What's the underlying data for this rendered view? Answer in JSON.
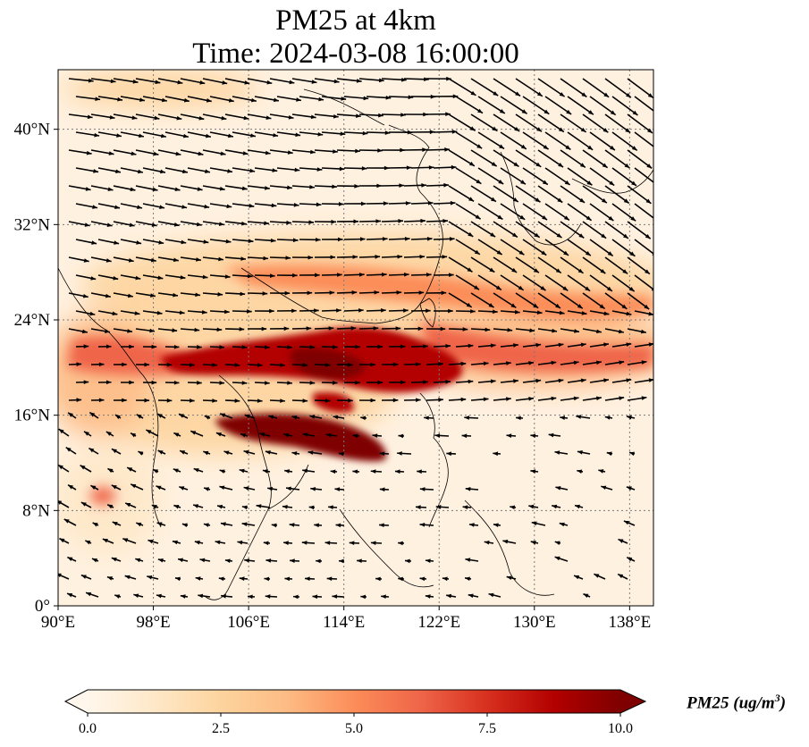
{
  "title": {
    "line1": "PM25 at 4km",
    "line2": "Time: 2024-03-08 16:00:00"
  },
  "map": {
    "lon_range": [
      90,
      140
    ],
    "lat_range": [
      0,
      45
    ],
    "lon_ticks": [
      {
        "value": 90,
        "label": "90°E"
      },
      {
        "value": 98,
        "label": "98°E"
      },
      {
        "value": 106,
        "label": "106°E"
      },
      {
        "value": 114,
        "label": "114°E"
      },
      {
        "value": 122,
        "label": "122°E"
      },
      {
        "value": 130,
        "label": "130°E"
      },
      {
        "value": 138,
        "label": "138°E"
      }
    ],
    "lat_ticks": [
      {
        "value": 0,
        "label": "0°"
      },
      {
        "value": 8,
        "label": "8°N"
      },
      {
        "value": 16,
        "label": "16°N"
      },
      {
        "value": 24,
        "label": "24°N"
      },
      {
        "value": 32,
        "label": "32°N"
      },
      {
        "value": 40,
        "label": "40°N"
      }
    ],
    "gridlines": "dotted",
    "wind_vectors": true
  },
  "colorbar": {
    "label": "PM25 (ug/m",
    "label_exponent": "3",
    "label_close": ")",
    "range": [
      0,
      10
    ],
    "ticks": [
      "0.0",
      "2.5",
      "5.0",
      "7.5",
      "10.0"
    ],
    "colormap": "OrRd",
    "colors": [
      "#fff7ec",
      "#fee8c8",
      "#fdd49e",
      "#fdbb84",
      "#fc8d59",
      "#ef6548",
      "#d7301f",
      "#b30000",
      "#7f0000"
    ],
    "extend": "both"
  },
  "colors": {
    "gridline": "#7a7a7a",
    "coastline": "#000000",
    "arrow": "#000000"
  }
}
